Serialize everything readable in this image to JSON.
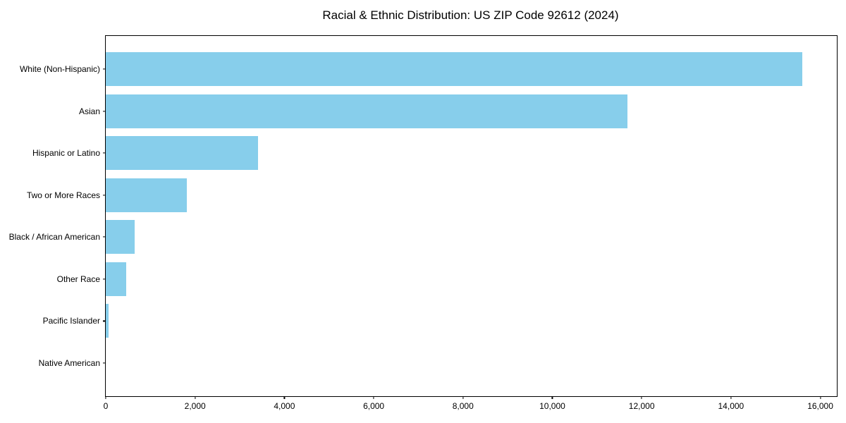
{
  "chart_data": {
    "type": "bar",
    "orientation": "horizontal",
    "title": "Racial & Ethnic Distribution: US ZIP Code 92612 (2024)",
    "categories": [
      "White (Non-Hispanic)",
      "Asian",
      "Hispanic or Latino",
      "Two or More Races",
      "Black / African American",
      "Other Race",
      "Pacific Islander",
      "Native American"
    ],
    "values": [
      15590,
      11680,
      3410,
      1820,
      650,
      460,
      60,
      0
    ],
    "xlabel": "",
    "ylabel": "",
    "xlim": [
      0,
      16370
    ],
    "xticks": [
      0,
      2000,
      4000,
      6000,
      8000,
      10000,
      12000,
      14000,
      16000
    ],
    "xtick_labels": [
      "0",
      "2,000",
      "4,000",
      "6,000",
      "8,000",
      "10,000",
      "12,000",
      "14,000",
      "16,000"
    ],
    "bar_color": "#87CEEB",
    "axis_color": "#000000",
    "text_color": "#000000",
    "background_color": "#FFFFFF",
    "grid": false,
    "legend": null
  }
}
